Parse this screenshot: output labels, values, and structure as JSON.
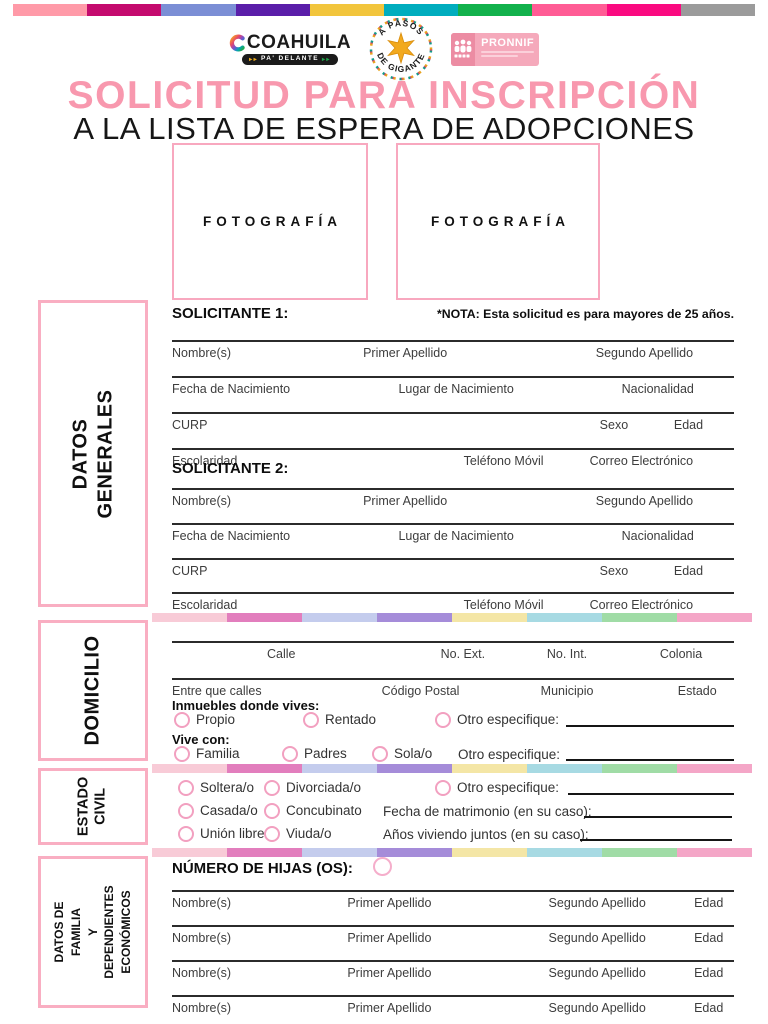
{
  "colors": {
    "accent_pink_border": "#F9AEC2",
    "title_pink": "#F898AE",
    "radio_pink": "#F2A0C0",
    "line_dark": "#2B2B2B"
  },
  "header": {
    "stripe_colors": [
      "#FF9AA8",
      "#C40B6E",
      "#7B8ED5",
      "#5A1EA9",
      "#F2C53C",
      "#00ADBE",
      "#12B14C",
      "#FF5C95",
      "#FA0A80",
      "#9B9B9B"
    ],
    "logos": {
      "coahuila_name": "COAHUILA",
      "coahuila_tagline": "PA' DELANTE",
      "badge_top": "A PASOS",
      "badge_bottom": "DE GIGANTE",
      "pronnif_name": "PRONNIF"
    },
    "title_line1": "SOLICITUD PARA INSCRIPCIÓN",
    "title_line2": "A LA LISTA DE ESPERA DE ADOPCIONES"
  },
  "photos": {
    "label": "FOTOGRAFÍA"
  },
  "divider_colors": [
    "#F8CBD7",
    "#E27EBD",
    "#C4CCED",
    "#A58CD9",
    "#F4E6A6",
    "#A7DAE3",
    "#A0DCA6",
    "#F4A6C7"
  ],
  "datos_generales": {
    "sidebar_label": "DATOS GENERALES",
    "solicitante1_heading": "SOLICITANTE 1:",
    "note_bold": "*NOTA:",
    "note_rest": " Esta solicitud es para mayores de 25 años.",
    "solicitante2_heading": "SOLICITANTE 2:",
    "field_rows": [
      [
        "Nombre(s)",
        "Primer Apellido",
        "Segundo Apellido"
      ],
      [
        "Fecha de Nacimiento",
        "Lugar de Nacimiento",
        "Nacionalidad"
      ],
      [
        "CURP",
        "Sexo",
        "Edad"
      ],
      [
        "Escolaridad",
        "Teléfono Móvil",
        "Correo Electrónico"
      ]
    ]
  },
  "domicilio": {
    "sidebar_label": "DOMICILIO",
    "address_rows": [
      [
        "Calle",
        "No. Ext.",
        "No. Int.",
        "Colonia"
      ],
      [
        "Entre que calles",
        "Código Postal",
        "Municipio",
        "Estado"
      ]
    ],
    "inmuebles_heading": "Inmuebles donde vives:",
    "inmuebles_options": [
      "Propio",
      "Rentado"
    ],
    "inmuebles_otro_label": "Otro especifique:",
    "vive_heading": "Vive con:",
    "vive_options": [
      "Familia",
      "Padres",
      "Sola/o"
    ],
    "vive_otro_label": "Otro especifique:"
  },
  "estado_civil": {
    "sidebar_label": "ESTADO\nCIVIL",
    "options_col1": [
      "Soltera/o",
      "Casada/o",
      "Unión libre"
    ],
    "options_col2": [
      "Divorciada/o",
      "Concubinato",
      "Viuda/o"
    ],
    "otro_label": "Otro especifique:",
    "fecha_matrimonio_label": "Fecha de matrimonio (en su caso):",
    "anios_juntos_label": "Años viviendo juntos (en su caso):"
  },
  "familia": {
    "sidebar_label": "DATOS DE FAMILIA\nY DEPENDIENTES\nECONÓMICOS",
    "heading_bold": "NÚMERO DE HIJAS",
    "heading_rest": " (OS):",
    "child_row_labels": [
      "Nombre(s)",
      "Primer Apellido",
      "Segundo Apellido",
      "Edad"
    ],
    "child_row_count": 4
  }
}
